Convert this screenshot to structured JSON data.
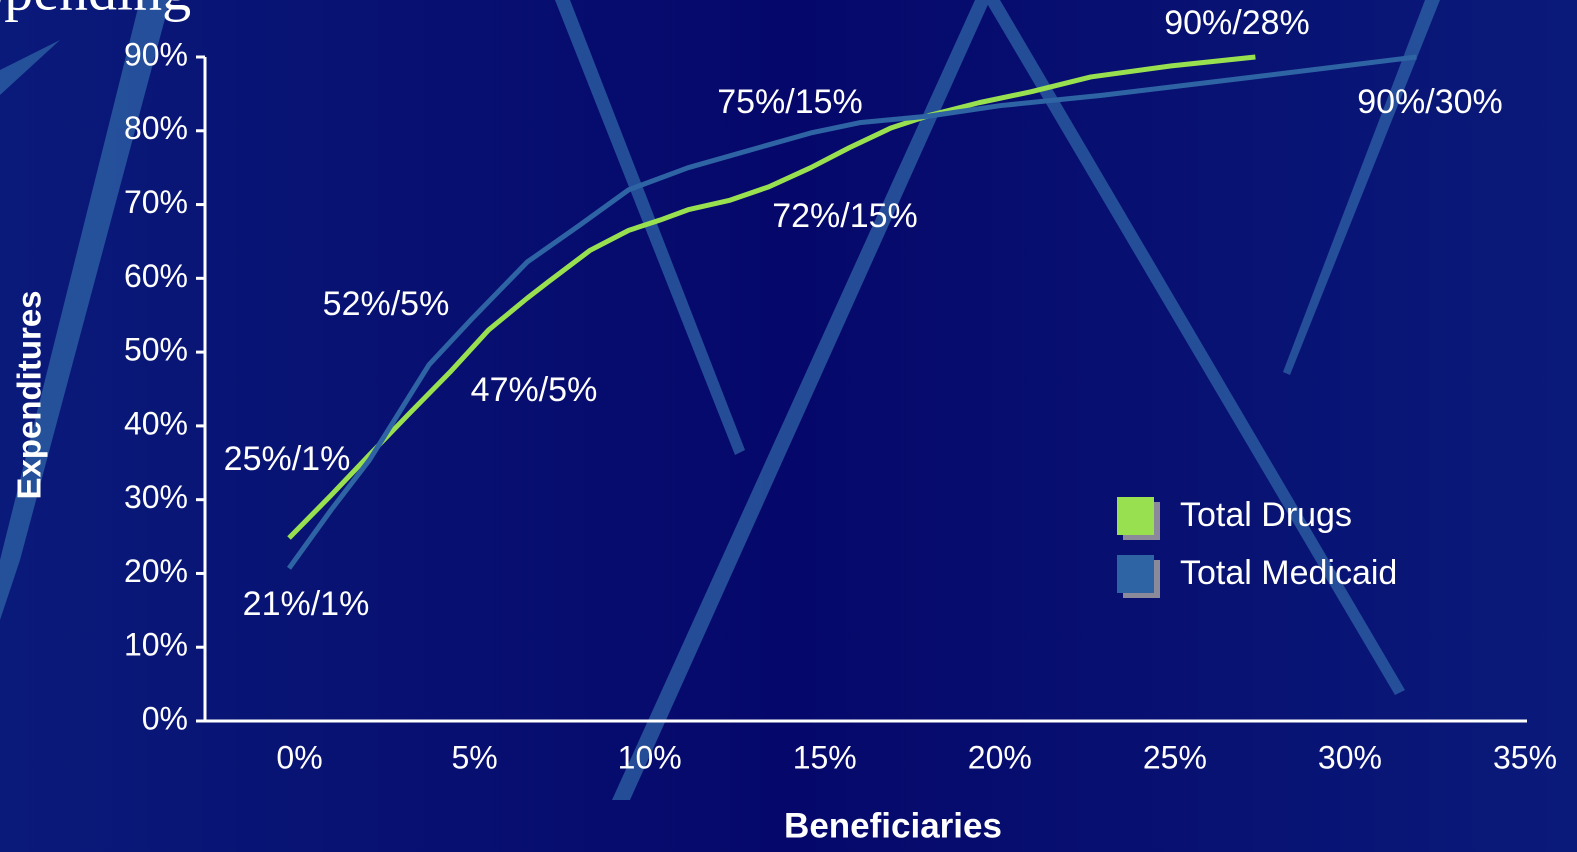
{
  "chart_data": {
    "type": "line",
    "title": "Spending",
    "x_label": "Beneficiaries",
    "y_label": "Expenditures",
    "xlim": [
      -2.7,
      35
    ],
    "ylim": [
      0,
      90
    ],
    "xticks": [
      {
        "value": 0,
        "label": "0%"
      },
      {
        "value": 5,
        "label": "5%"
      },
      {
        "value": 10,
        "label": "10%"
      },
      {
        "value": 15,
        "label": "15%"
      },
      {
        "value": 20,
        "label": "20%"
      },
      {
        "value": 25,
        "label": "25%"
      },
      {
        "value": 30,
        "label": "30%"
      },
      {
        "value": 35,
        "label": "35%"
      }
    ],
    "yticks": [
      {
        "value": 0,
        "label": "0%"
      },
      {
        "value": 10,
        "label": "10%"
      },
      {
        "value": 20,
        "label": "20%"
      },
      {
        "value": 30,
        "label": "30%"
      },
      {
        "value": 40,
        "label": "40%"
      },
      {
        "value": 50,
        "label": "50%"
      },
      {
        "value": 60,
        "label": "60%"
      },
      {
        "value": 70,
        "label": "70%"
      },
      {
        "value": 80,
        "label": "80%"
      },
      {
        "value": 90,
        "label": "90%"
      }
    ],
    "series": [
      {
        "name": "Total Drugs",
        "color": "#99e050",
        "x": [
          -0.3,
          0.9,
          2.0,
          3.1,
          4.3,
          5.4,
          6.5,
          7.1,
          8.3,
          9.4,
          10.3,
          11.1,
          12.3,
          13.4,
          14.6,
          15.7,
          16.9,
          18.0,
          19.4,
          20.9,
          22.6,
          24.9,
          27.3
        ],
        "values": [
          24.8,
          30.6,
          36.1,
          41.5,
          47.3,
          53.0,
          57.3,
          59.5,
          63.8,
          66.5,
          67.9,
          69.3,
          70.6,
          72.4,
          75.0,
          77.7,
          80.4,
          82.1,
          83.8,
          85.3,
          87.3,
          88.8,
          90
        ]
      },
      {
        "name": "Total Medicaid",
        "color": "#2e64a4",
        "x": [
          -0.3,
          0.9,
          2.0,
          3.7,
          4.9,
          6.5,
          8.0,
          9.4,
          11.1,
          13.4,
          14.6,
          16.0,
          18.0,
          20.0,
          22.9,
          27.1,
          31.9
        ],
        "values": [
          20.7,
          28.6,
          35.4,
          48.3,
          54.4,
          62.2,
          67.2,
          72.0,
          75.0,
          78.1,
          79.7,
          81.1,
          82.0,
          83.4,
          84.8,
          87.2,
          90
        ]
      }
    ],
    "annotations": [
      "90%/28%",
      "75%/15%",
      "90%/30%",
      "72%/15%",
      "52%/5%",
      "47%/5%",
      "25%/1%",
      "21%/1%"
    ]
  }
}
